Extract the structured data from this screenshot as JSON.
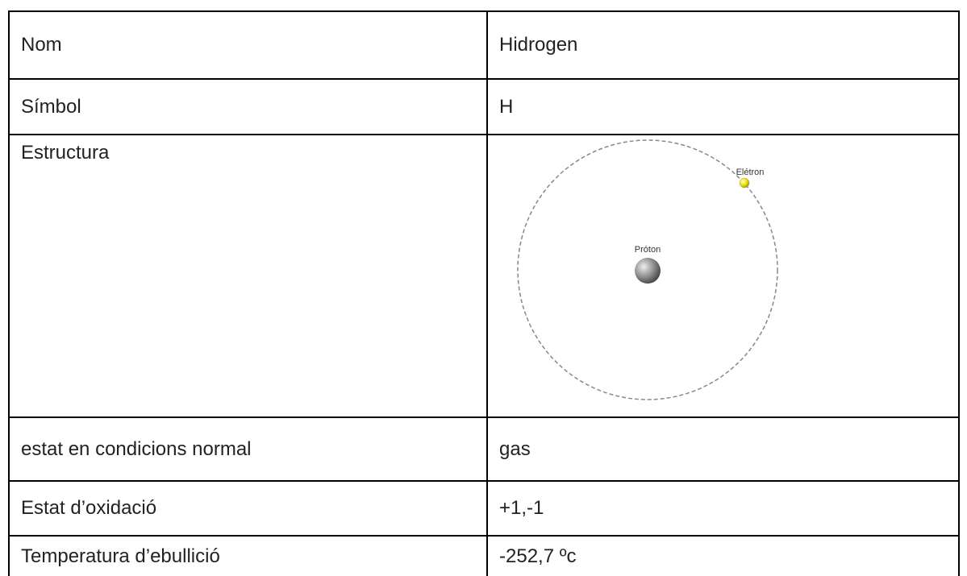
{
  "table": {
    "rows": [
      [
        "Nom",
        "Hidrogen"
      ],
      [
        "Símbol",
        "H"
      ],
      [
        "Estructura",
        ""
      ],
      [
        "estat en condicions normal",
        "gas"
      ],
      [
        "Estat d’oxidació",
        "+1,-1"
      ],
      [
        "Temperatura d’ebullició",
        "-252,7 ºc"
      ]
    ]
  },
  "diagram": {
    "electron_label": "Elétron",
    "proton_label": "Próton"
  }
}
